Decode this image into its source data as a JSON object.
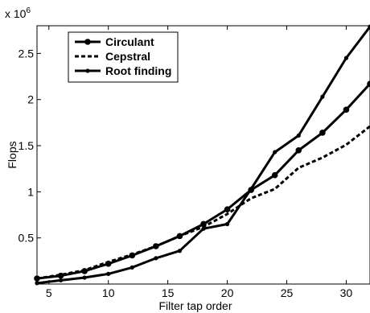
{
  "chart_data": {
    "type": "line",
    "title": "",
    "xlabel": "Filter tap order",
    "ylabel": "Flops",
    "exponent_label": "x 10",
    "exponent_power": "6",
    "xlim": [
      4,
      32
    ],
    "ylim": [
      0,
      2.8
    ],
    "xticks": [
      5,
      10,
      15,
      20,
      25,
      30
    ],
    "yticks": [
      0.5,
      1,
      1.5,
      2,
      2.5
    ],
    "ytick_labels": [
      "0.5",
      "1",
      "1.5",
      "2",
      "2.5"
    ],
    "grid": false,
    "legend_position": "top-left",
    "x": [
      4,
      6,
      8,
      10,
      12,
      14,
      16,
      18,
      20,
      22,
      24,
      26,
      28,
      30,
      32
    ],
    "series": [
      {
        "name": "Circulant",
        "line_style": "solid",
        "marker": "large-dot",
        "values": [
          0.06,
          0.09,
          0.14,
          0.22,
          0.31,
          0.41,
          0.52,
          0.65,
          0.81,
          1.02,
          1.18,
          1.45,
          1.64,
          1.89,
          2.17
        ]
      },
      {
        "name": "Cepstral",
        "line_style": "dashed",
        "marker": "none",
        "values": [
          0.06,
          0.1,
          0.15,
          0.24,
          0.32,
          0.41,
          0.52,
          0.62,
          0.76,
          0.93,
          1.03,
          1.26,
          1.37,
          1.51,
          1.71
        ]
      },
      {
        "name": "Root finding",
        "line_style": "solid",
        "marker": "small-dot",
        "values": [
          0.01,
          0.04,
          0.07,
          0.11,
          0.18,
          0.28,
          0.36,
          0.6,
          0.65,
          1.03,
          1.43,
          1.61,
          2.03,
          2.45,
          2.79
        ]
      }
    ]
  }
}
